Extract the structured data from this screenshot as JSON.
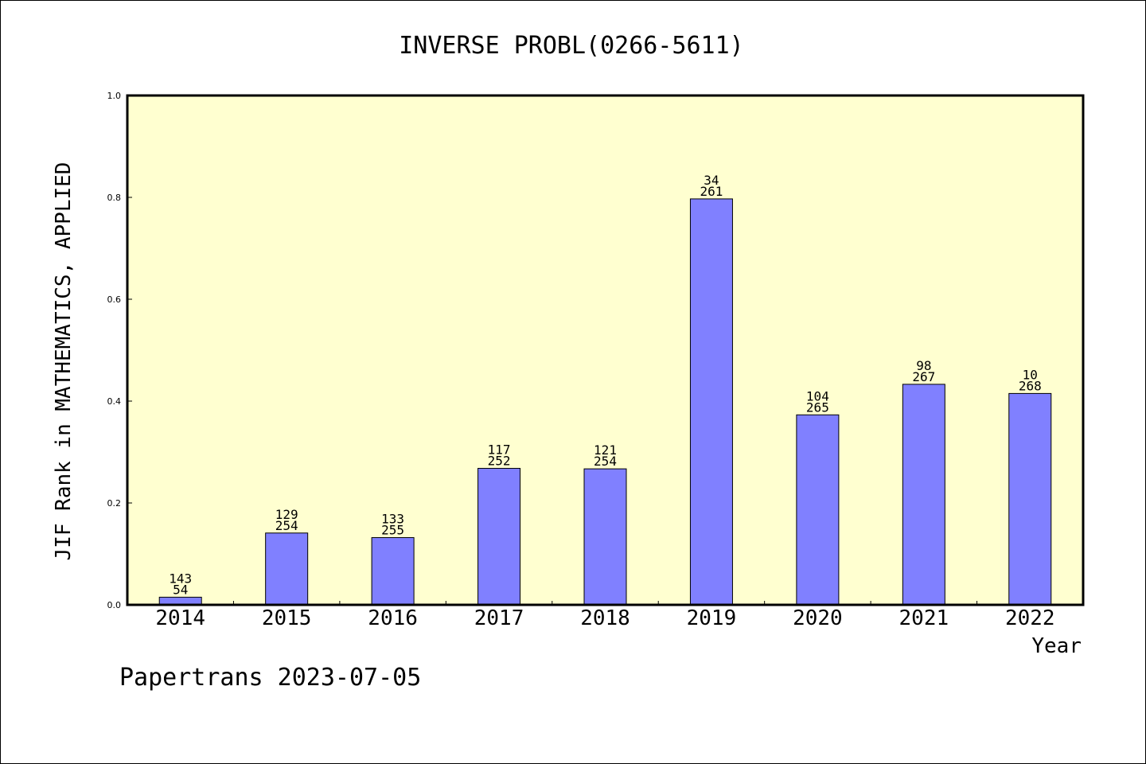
{
  "chart_data": {
    "type": "bar",
    "title": "INVERSE PROBL(0266-5611)",
    "xlabel": "Year",
    "ylabel": "JIF Rank in MATHEMATICS, APPLIED",
    "ylim": [
      0,
      1.0
    ],
    "yticks": [
      "0.0",
      "0.2",
      "0.4",
      "0.6",
      "0.8",
      "1.0"
    ],
    "categories": [
      "2014",
      "2015",
      "2016",
      "2017",
      "2018",
      "2019",
      "2020",
      "2021",
      "2022"
    ],
    "values": [
      0.015,
      0.141,
      0.132,
      0.268,
      0.267,
      0.797,
      0.373,
      0.433,
      0.415
    ],
    "rank_labels": [
      "143",
      "129",
      "133",
      "117",
      "121",
      "34",
      "104",
      "98",
      "10"
    ],
    "total_labels": [
      "54",
      "254",
      "255",
      "252",
      "254",
      "261",
      "265",
      "267",
      "268"
    ],
    "grid": false,
    "colors": {
      "bar": "#8080ff",
      "plot_background": "#ffffd0"
    }
  },
  "footer": {
    "text": "Papertrans 2023-07-05"
  }
}
